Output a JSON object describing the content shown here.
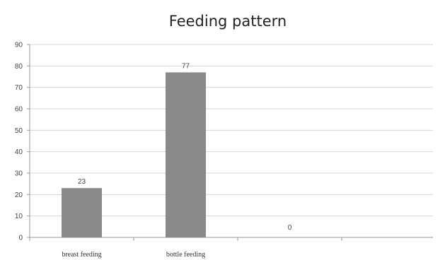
{
  "chart_data": {
    "type": "bar",
    "title": "Feeding pattern",
    "categories": [
      "breast feeding",
      "bottle feeding",
      ""
    ],
    "values": [
      23,
      77,
      0
    ],
    "data_labels": [
      "23",
      "77",
      "0"
    ],
    "ylim": [
      0,
      90
    ],
    "yticks": [
      0,
      10,
      20,
      30,
      40,
      50,
      60,
      70,
      80,
      90
    ],
    "grid": true,
    "bar_color": "#8a8a8a"
  }
}
